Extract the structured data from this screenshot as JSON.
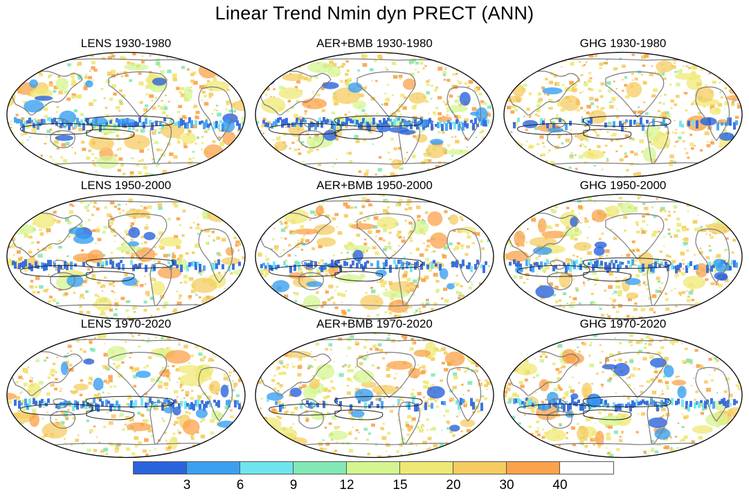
{
  "title": "Linear Trend Nmin dyn PRECT (ANN)",
  "panels": [
    {
      "title": "LENS 1930-1980",
      "seed": 11,
      "blue": 0.85
    },
    {
      "title": "AER+BMB 1930-1980",
      "seed": 23,
      "blue": 0.95
    },
    {
      "title": "GHG 1930-1980",
      "seed": 37,
      "blue": 0.35
    },
    {
      "title": "LENS 1950-2000",
      "seed": 41,
      "blue": 0.55
    },
    {
      "title": "AER+BMB 1950-2000",
      "seed": 53,
      "blue": 0.6
    },
    {
      "title": "GHG 1950-2000",
      "seed": 67,
      "blue": 0.8
    },
    {
      "title": "LENS 1970-2020",
      "seed": 71,
      "blue": 0.7
    },
    {
      "title": "AER+BMB 1970-2020",
      "seed": 83,
      "blue": 0.4
    },
    {
      "title": "GHG 1970-2020",
      "seed": 97,
      "blue": 0.9
    }
  ],
  "colorbar": {
    "labels": [
      "3",
      "6",
      "9",
      "12",
      "15",
      "20",
      "30",
      "40"
    ],
    "colors": [
      "#2a64dc",
      "#3aa0f2",
      "#6ee4ee",
      "#82e8b4",
      "#d4f590",
      "#f0e874",
      "#f6cc62",
      "#fba24a",
      "#ffffff"
    ]
  }
}
